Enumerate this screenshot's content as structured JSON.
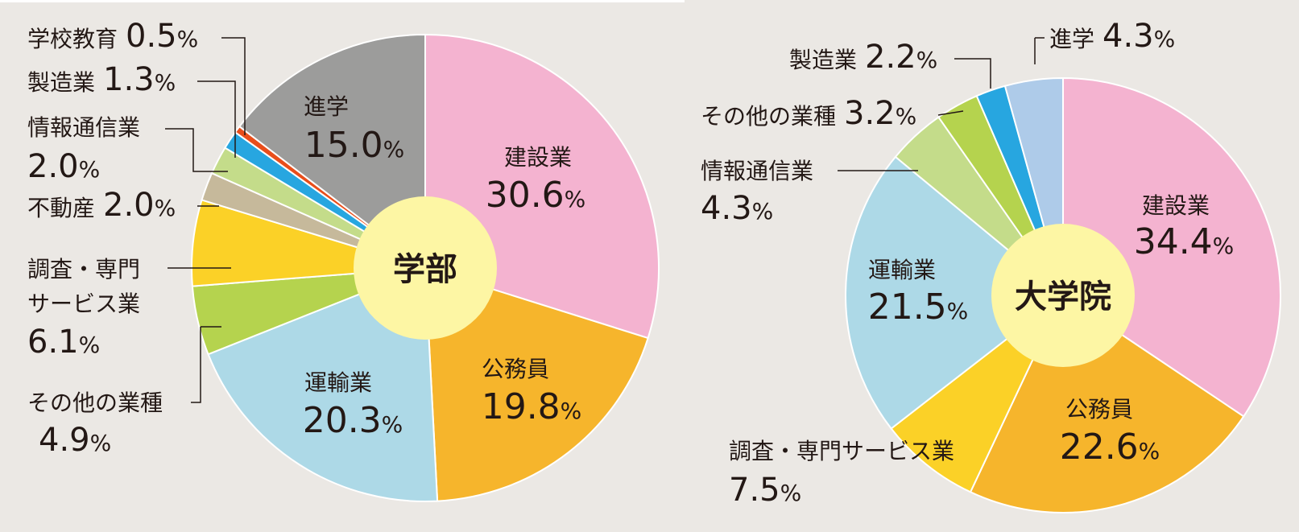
{
  "chart_data": [
    {
      "type": "pie",
      "center_label": "学部",
      "slices": [
        {
          "label": "建設業",
          "value": 30.6,
          "color": "#f4b3d0"
        },
        {
          "label": "公務員",
          "value": 19.8,
          "color": "#f6b52c"
        },
        {
          "label": "運輸業",
          "value": 20.3,
          "color": "#add9e7"
        },
        {
          "label": "その他の業種",
          "value": 4.9,
          "color": "#b5d34e"
        },
        {
          "label": "調査・専門サービス業",
          "value": 6.1,
          "color": "#fbd127"
        },
        {
          "label": "不動産",
          "value": 2.0,
          "color": "#c6b99b"
        },
        {
          "label": "情報通信業",
          "value": 2.0,
          "color": "#c4dc8a"
        },
        {
          "label": "製造業",
          "value": 1.3,
          "color": "#27a6e0"
        },
        {
          "label": "学校教育",
          "value": 0.5,
          "color": "#e94e1b"
        },
        {
          "label": "進学",
          "value": 15.0,
          "color": "#9c9c9b"
        }
      ]
    },
    {
      "type": "pie",
      "center_label": "大学院",
      "slices": [
        {
          "label": "建設業",
          "value": 34.4,
          "color": "#f4b3d0"
        },
        {
          "label": "公務員",
          "value": 22.6,
          "color": "#f6b52c"
        },
        {
          "label": "調査・専門サービス業",
          "value": 7.5,
          "color": "#fbd127"
        },
        {
          "label": "運輸業",
          "value": 21.5,
          "color": "#add9e7"
        },
        {
          "label": "情報通信業",
          "value": 4.3,
          "color": "#c4dc8a"
        },
        {
          "label": "その他の業種",
          "value": 3.2,
          "color": "#b5d34e"
        },
        {
          "label": "製造業",
          "value": 2.2,
          "color": "#27a6e0"
        },
        {
          "label": "進学",
          "value": 4.3,
          "color": "#aecbe9"
        }
      ]
    }
  ],
  "text": {
    "pct": "%",
    "c1": {
      "construction_label": "建設業",
      "construction_val": "30.6",
      "public_label": "公務員",
      "public_val": "19.8",
      "transport_label": "運輸業",
      "transport_val": "20.3",
      "further_label": "進学",
      "further_val": "15.0",
      "school_label": "学校教育",
      "school_val": "0.5",
      "mfg_label": "製造業",
      "mfg_val": "1.3",
      "info_label": "情報通信業",
      "info_val": "2.0",
      "realestate_label": "不動産",
      "realestate_val": "2.0",
      "research_label1": "調査・専門",
      "research_label2": "サービス業",
      "research_val": "6.1",
      "other_label": "その他の業種",
      "other_val": "4.9"
    },
    "c2": {
      "construction_label": "建設業",
      "construction_val": "34.4",
      "public_label": "公務員",
      "public_val": "22.6",
      "transport_label": "運輸業",
      "transport_val": "21.5",
      "research_label": "調査・専門サービス業",
      "research_val": "7.5",
      "info_label": "情報通信業",
      "info_val": "4.3",
      "other_label": "その他の業種",
      "other_val": "3.2",
      "mfg_label": "製造業",
      "mfg_val": "2.2",
      "further_label": "進学",
      "further_val": "4.3"
    }
  }
}
